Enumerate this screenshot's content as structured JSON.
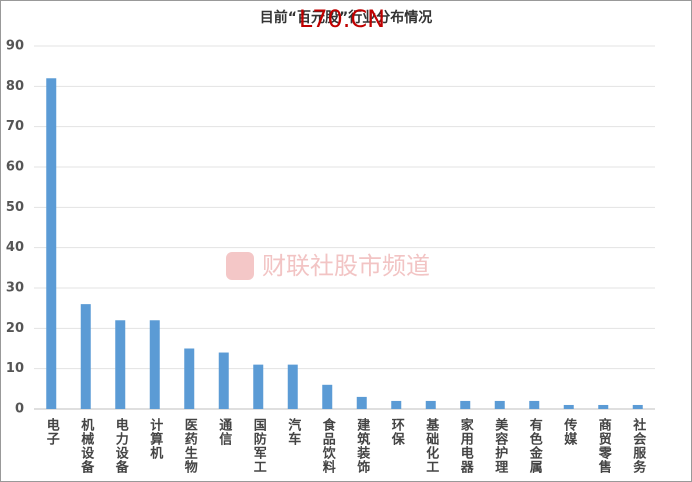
{
  "chart_data": {
    "type": "bar",
    "title": "目前“百元股”行业分布情况",
    "annotation": "L70.CN",
    "watermark": "财联社股市频道",
    "categories": [
      "电子",
      "机械设备",
      "电力设备",
      "计算机",
      "医药生物",
      "通信",
      "国防军工",
      "汽车",
      "食品饮料",
      "建筑装饰",
      "环保",
      "基础化工",
      "家用电器",
      "美容护理",
      "有色金属",
      "传媒",
      "商贸零售",
      "社会服务"
    ],
    "values": [
      82,
      26,
      22,
      22,
      15,
      14,
      11,
      11,
      6,
      3,
      2,
      2,
      2,
      2,
      2,
      1,
      1,
      1
    ],
    "color": "#5b9bd5",
    "ylim": [
      0,
      90
    ],
    "yticks": [
      0,
      10,
      20,
      30,
      40,
      50,
      60,
      70,
      80,
      90
    ],
    "grid": true
  }
}
